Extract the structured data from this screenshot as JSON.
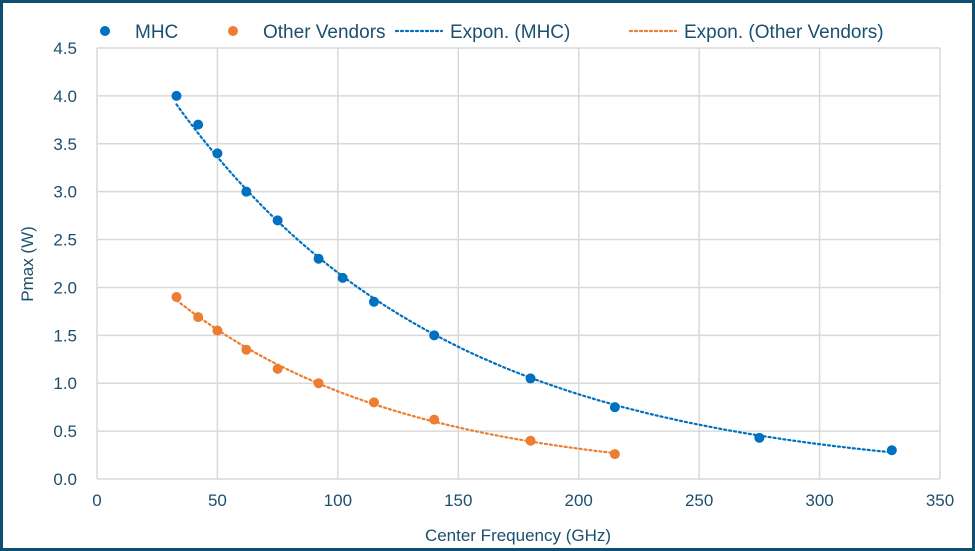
{
  "chart_data": {
    "type": "scatter",
    "title": "",
    "xlabel": "Center Frequency (GHz)",
    "ylabel": "Pmax (W)",
    "xlim": [
      0,
      350
    ],
    "ylim": [
      0,
      4.5
    ],
    "xticks": [
      "0",
      "50",
      "100",
      "150",
      "200",
      "250",
      "300",
      "350"
    ],
    "yticks": [
      "0.0",
      "0.5",
      "1.0",
      "1.5",
      "2.0",
      "2.5",
      "3.0",
      "3.5",
      "4.0",
      "4.5"
    ],
    "grid": true,
    "legend_position": "top",
    "series": [
      {
        "name": "MHC",
        "color": "#0070C0",
        "x": [
          33,
          42,
          50,
          62,
          75,
          92,
          102,
          115,
          140,
          180,
          215,
          275,
          330
        ],
        "y": [
          4.0,
          3.7,
          3.4,
          3.0,
          2.7,
          2.3,
          2.1,
          1.85,
          1.5,
          1.05,
          0.75,
          0.43,
          0.3
        ]
      },
      {
        "name": "Other Vendors",
        "color": "#ED7D31",
        "x": [
          33,
          42,
          50,
          62,
          75,
          92,
          115,
          140,
          180,
          215
        ],
        "y": [
          1.9,
          1.69,
          1.55,
          1.35,
          1.15,
          1.0,
          0.8,
          0.62,
          0.4,
          0.26
        ]
      }
    ],
    "trendlines": [
      {
        "name": "Expon. (MHC)",
        "type": "exponential",
        "series": 0,
        "color": "#0070C0"
      },
      {
        "name": "Expon. (Other Vendors)",
        "type": "exponential",
        "series": 1,
        "color": "#ED7D31"
      }
    ]
  }
}
